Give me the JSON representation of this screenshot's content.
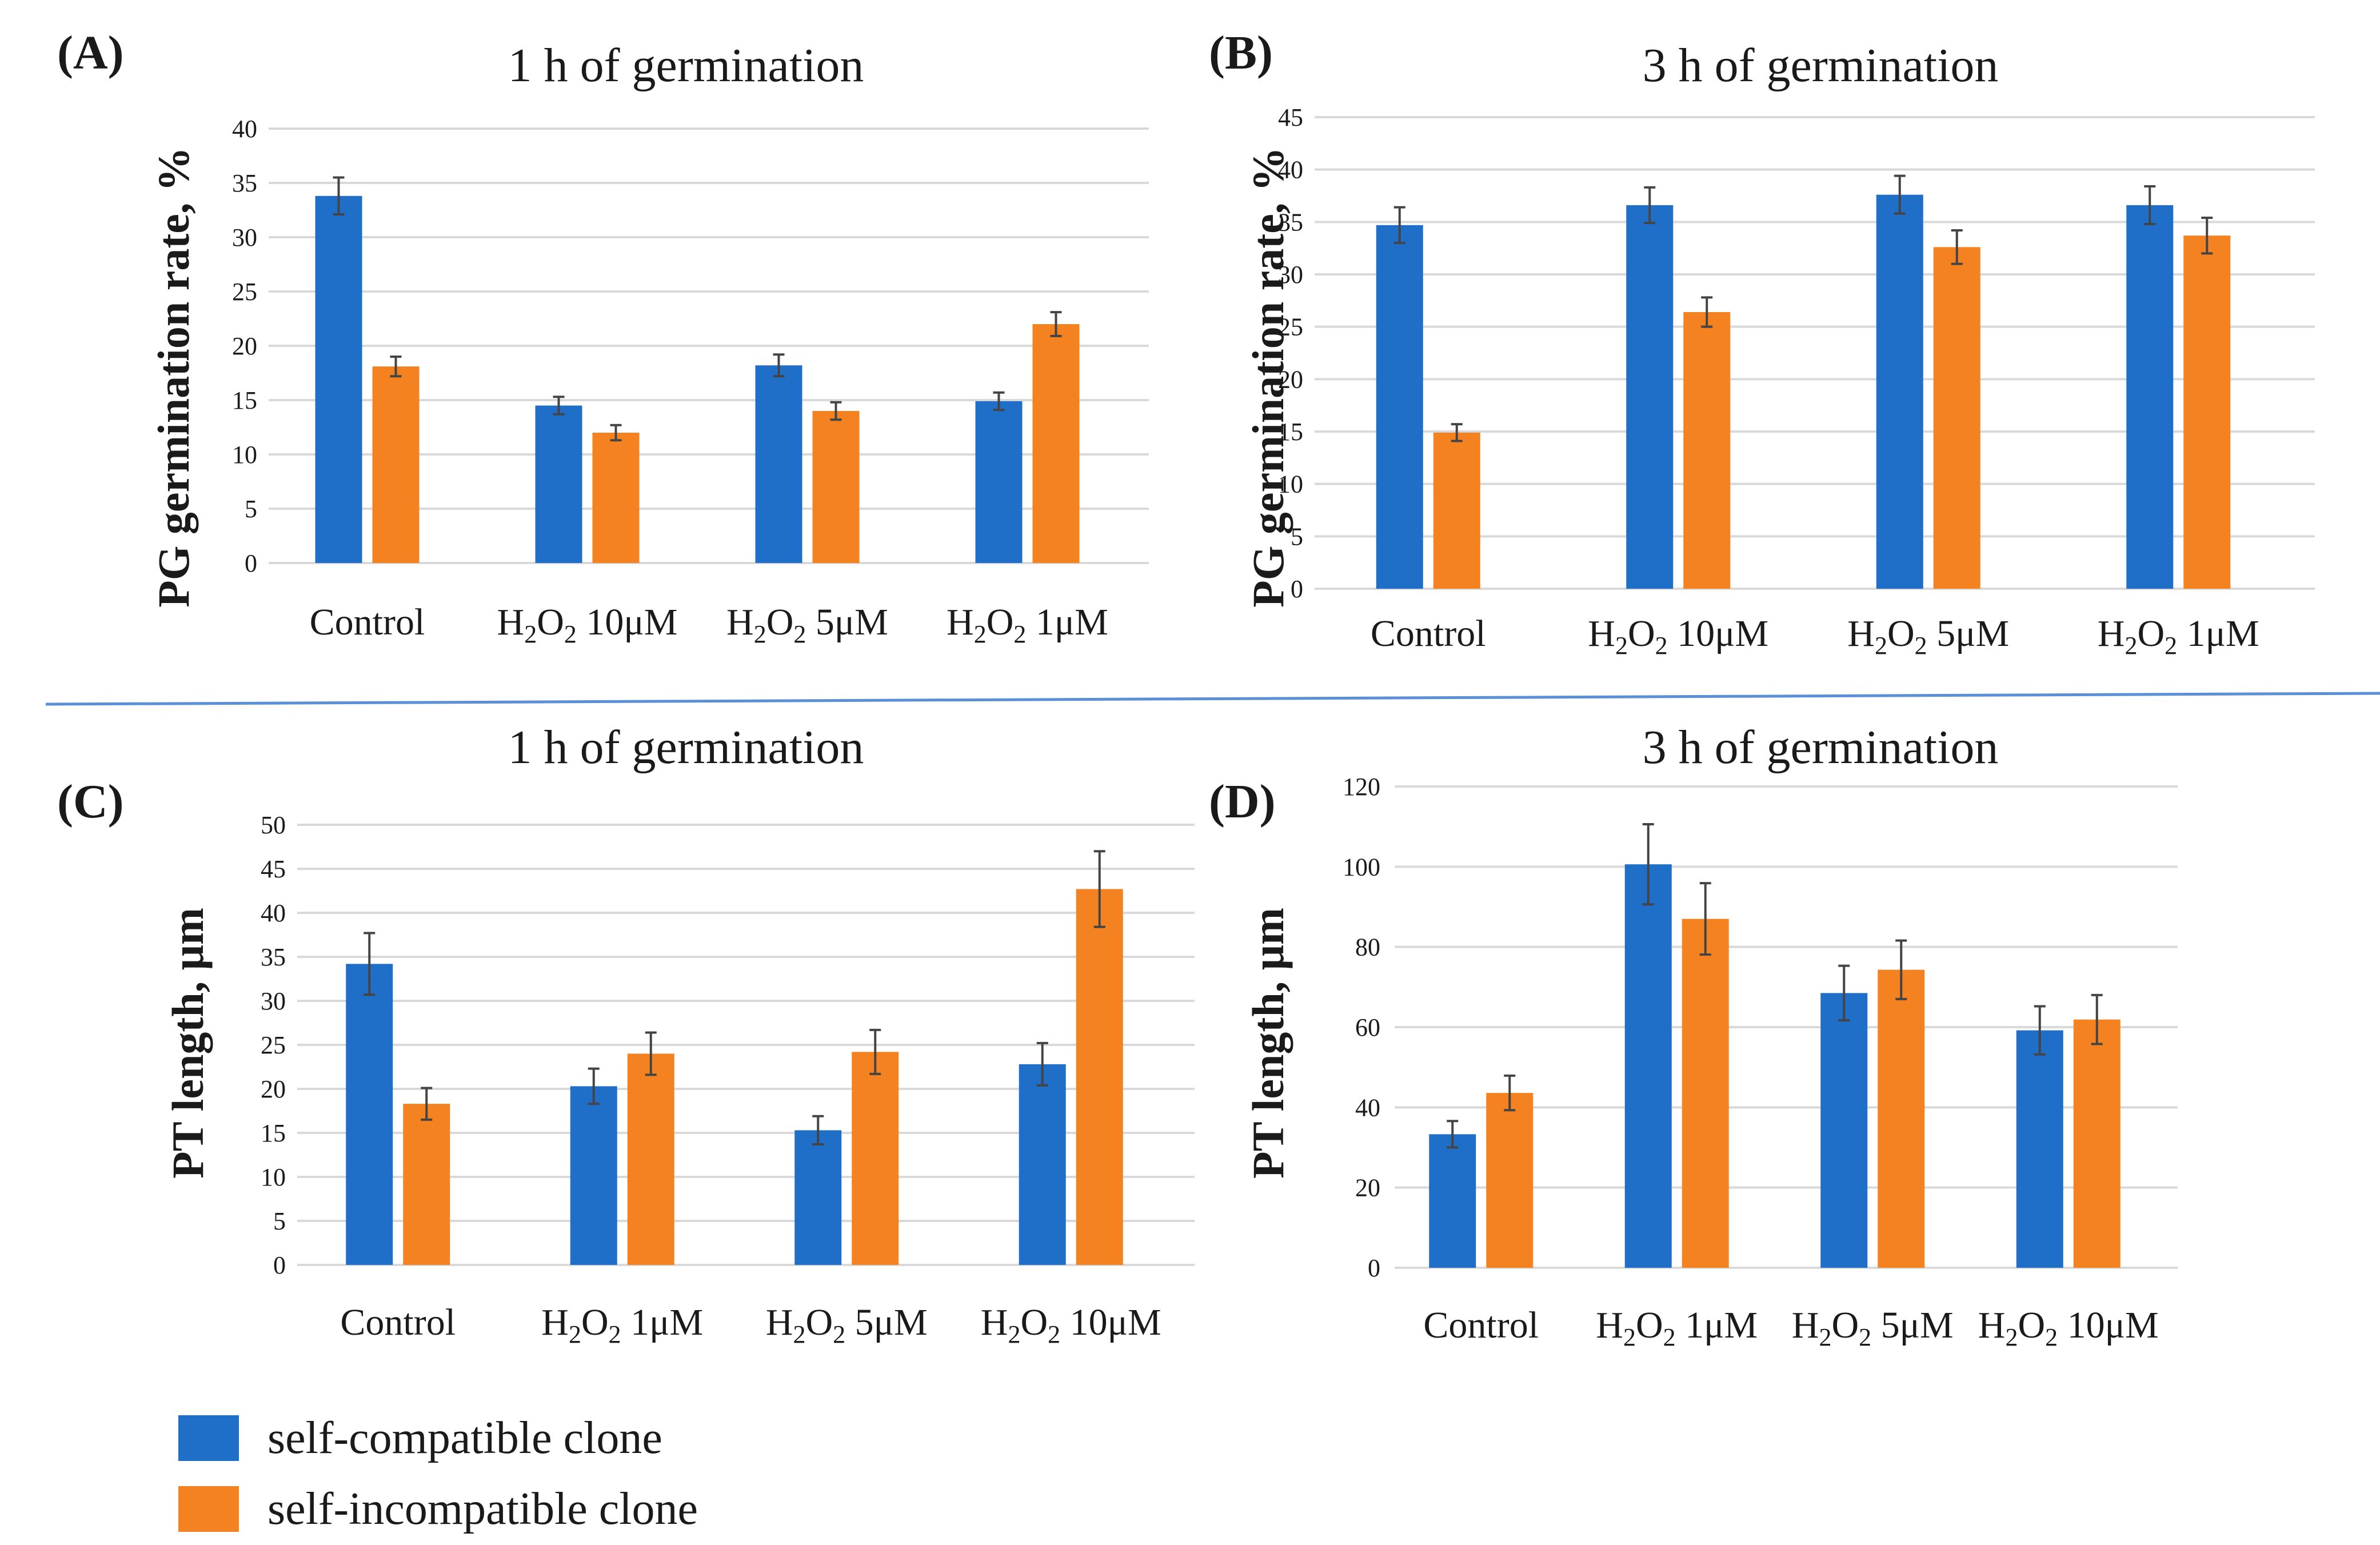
{
  "colors": {
    "series_a": "#1f6fc8",
    "series_b": "#f58220",
    "separator": "#5b8fd6"
  },
  "legend": {
    "series_a": "self-compatible clone",
    "series_b": "self-incompatible clone"
  },
  "chart_data": [
    {
      "panel": "(A)",
      "type": "bar",
      "title": "1 h of germination",
      "ylabel": "PG germination rate, %",
      "ylim": [
        0,
        40
      ],
      "ytick_step": 5,
      "categories": [
        "Control",
        "H2O2 10μM",
        "H2O2 5μM",
        "H2O2 1μM"
      ],
      "series": [
        {
          "name": "self-compatible clone",
          "values": [
            33.8,
            14.5,
            18.2,
            14.9
          ],
          "errors": [
            1.7,
            0.8,
            1.0,
            0.8
          ]
        },
        {
          "name": "self-incompatible clone",
          "values": [
            18.1,
            12.0,
            14.0,
            22.0
          ],
          "errors": [
            0.9,
            0.7,
            0.8,
            1.1
          ]
        }
      ]
    },
    {
      "panel": "(B)",
      "type": "bar",
      "title": "3 h of germination",
      "ylabel": "PG germination rate, %",
      "ylim": [
        0,
        45
      ],
      "ytick_step": 5,
      "categories": [
        "Control",
        "H2O2 10μM",
        "H2O2 5μM",
        "H2O2 1μM"
      ],
      "series": [
        {
          "name": "self-compatible clone",
          "values": [
            34.7,
            36.6,
            37.6,
            36.6
          ],
          "errors": [
            1.7,
            1.7,
            1.8,
            1.8
          ]
        },
        {
          "name": "self-incompatible clone",
          "values": [
            14.9,
            26.4,
            32.6,
            33.7
          ],
          "errors": [
            0.8,
            1.4,
            1.6,
            1.7
          ]
        }
      ]
    },
    {
      "panel": "(C)",
      "type": "bar",
      "title": "1 h of germination",
      "ylabel": "PT length, μm",
      "ylim": [
        0,
        50
      ],
      "ytick_step": 5,
      "categories": [
        "Control",
        "H2O2 1μM",
        "H2O2 5μM",
        "H2O2 10μM"
      ],
      "series": [
        {
          "name": "self-compatible clone",
          "values": [
            34.2,
            20.3,
            15.3,
            22.8
          ],
          "errors": [
            3.5,
            2.0,
            1.6,
            2.4
          ]
        },
        {
          "name": "self-incompatible clone",
          "values": [
            18.3,
            24.0,
            24.2,
            42.7
          ],
          "errors": [
            1.8,
            2.4,
            2.5,
            4.3
          ]
        }
      ]
    },
    {
      "panel": "(D)",
      "type": "bar",
      "title": "3 h of germination",
      "ylabel": "PT length, μm",
      "ylim": [
        0,
        120
      ],
      "ytick_step": 20,
      "categories": [
        "Control",
        "H2O2 1μM",
        "H2O2 5μM",
        "H2O2 10μM"
      ],
      "series": [
        {
          "name": "self-compatible clone",
          "values": [
            33.3,
            100.6,
            68.5,
            59.2
          ],
          "errors": [
            3.3,
            10.0,
            6.8,
            6.0
          ]
        },
        {
          "name": "self-incompatible clone",
          "values": [
            43.6,
            87.0,
            74.3,
            61.9
          ],
          "errors": [
            4.3,
            8.9,
            7.3,
            6.1
          ]
        }
      ]
    }
  ]
}
